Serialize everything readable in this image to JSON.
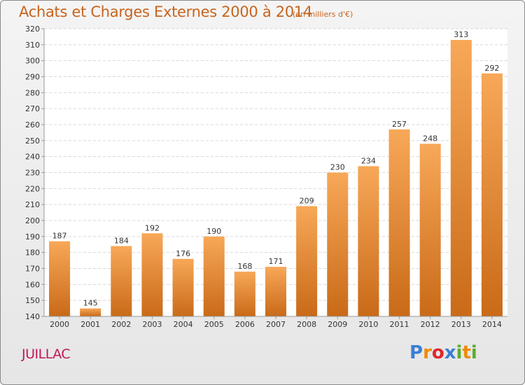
{
  "title": "Achats et Charges Externes 2000 à 2014",
  "subtitle": "(en milliers d'€)",
  "place": "JUILLAC",
  "logo": {
    "letters": [
      "P",
      "r",
      "o",
      "x",
      "i",
      "t",
      "i"
    ],
    "colors": [
      "#3a7fd5",
      "#f08a00",
      "#e0262c",
      "#3a7fd5",
      "#5aae2e",
      "#f08a00",
      "#5aae2e"
    ]
  },
  "colors": {
    "bar_top": "#f7a858",
    "bar_bottom": "#c96a18",
    "title": "#c8641e",
    "place": "#c0185a"
  },
  "chart_data": {
    "type": "bar",
    "categories": [
      "2000",
      "2001",
      "2002",
      "2003",
      "2004",
      "2005",
      "2006",
      "2007",
      "2008",
      "2009",
      "2010",
      "2011",
      "2012",
      "2013",
      "2014"
    ],
    "values": [
      187,
      145,
      184,
      192,
      176,
      190,
      168,
      171,
      209,
      230,
      234,
      257,
      248,
      313,
      292
    ],
    "ylim": [
      140,
      320
    ],
    "yticks": [
      140,
      150,
      160,
      170,
      180,
      190,
      200,
      210,
      220,
      230,
      240,
      250,
      260,
      270,
      280,
      290,
      300,
      310,
      320
    ],
    "grid": true,
    "data_labels": true
  }
}
